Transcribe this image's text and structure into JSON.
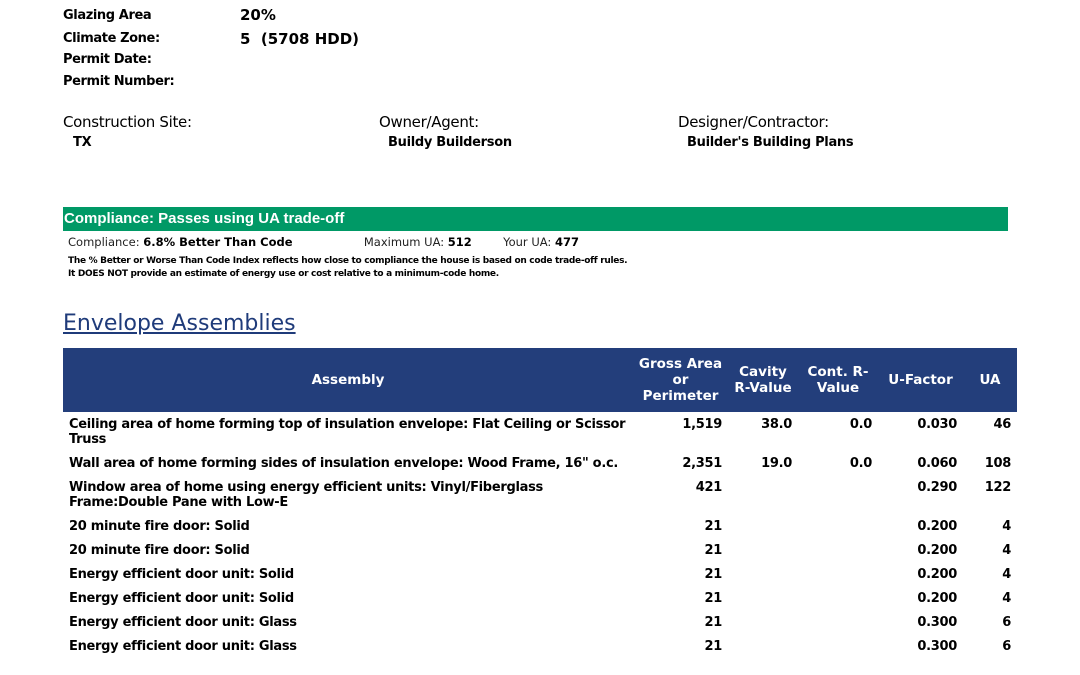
{
  "project": {
    "glazing_area_label": "Glazing Area",
    "glazing_area": "20%",
    "climate_zone_label": "Climate Zone:",
    "climate_zone": "5  (5708 HDD)",
    "permit_date_label": "Permit Date:",
    "permit_number_label": "Permit Number:"
  },
  "parties": {
    "site_label": "Construction Site:",
    "site": "TX",
    "owner_label": "Owner/Agent:",
    "owner": "Buildy Builderson",
    "designer_label": "Designer/Contractor:",
    "designer": "Builder's Building Plans"
  },
  "compliance": {
    "banner": "Compliance: Passes using UA trade-off",
    "compliance_label": "Compliance:",
    "compliance_value": "6.8% Better Than Code",
    "max_ua_label": "Maximum UA:",
    "max_ua": "512",
    "your_ua_label": "Your UA:",
    "your_ua": "477",
    "note1": "The % Better or Worse Than Code Index reflects  how close to compliance the house is based on code trade-off rules.",
    "note2": "It DOES NOT provide an estimate of energy use or cost relative to a minimum-code home.",
    "accent_color": "#009966"
  },
  "envelope": {
    "title": "Envelope Assemblies",
    "headers": [
      "Assembly",
      "Gross Area or Perimeter",
      "Cavity R-Value",
      "Cont. R-Value",
      "U-Factor",
      "UA"
    ],
    "rows": [
      [
        "Ceiling area of home forming top of insulation envelope: Flat Ceiling or Scissor Truss",
        "1,519",
        "38.0",
        "0.0",
        "0.030",
        "46"
      ],
      [
        "Wall area of home forming sides of insulation envelope: Wood Frame, 16\" o.c.",
        "2,351",
        "19.0",
        "0.0",
        "0.060",
        "108"
      ],
      [
        "Window area of home using energy efficient units: Vinyl/Fiberglass Frame:Double Pane with Low-E",
        "421",
        "",
        "",
        "0.290",
        "122"
      ],
      [
        "20 minute fire door: Solid",
        "21",
        "",
        "",
        "0.200",
        "4"
      ],
      [
        "20 minute fire door: Solid",
        "21",
        "",
        "",
        "0.200",
        "4"
      ],
      [
        "Energy efficient door unit: Solid",
        "21",
        "",
        "",
        "0.200",
        "4"
      ],
      [
        "Energy efficient door unit: Solid",
        "21",
        "",
        "",
        "0.200",
        "4"
      ],
      [
        "Energy efficient door unit: Glass",
        "21",
        "",
        "",
        "0.300",
        "6"
      ],
      [
        "Energy efficient door unit: Glass",
        "21",
        "",
        "",
        "0.300",
        "6"
      ]
    ],
    "header_color": "#233e7b"
  }
}
